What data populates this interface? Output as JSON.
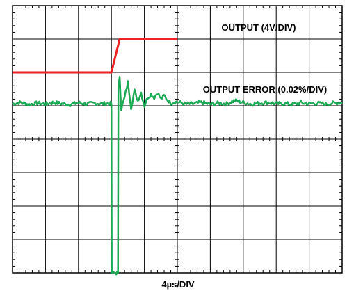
{
  "chart_data": {
    "type": "line",
    "title": "",
    "xlabel": "4µs/DIV",
    "ylabel": "",
    "grid": true,
    "x_divisions": 10,
    "y_divisions": 8,
    "x_units_per_div": "4µs",
    "series": [
      {
        "name": "OUTPUT (4V/DIV)",
        "color": "#ee2222",
        "points": [
          [
            0,
            6.0
          ],
          [
            6.0,
            6.0
          ],
          [
            6.5,
            7.0
          ],
          [
            6.7,
            7.0
          ],
          [
            10,
            7.0
          ]
        ]
      },
      {
        "name": "OUTPUT ERROR (0.02%/DIV)",
        "color": "#1aaa55",
        "points": [
          [
            0,
            5.06
          ],
          [
            0.5,
            5.1
          ],
          [
            1.0,
            5.04
          ],
          [
            1.5,
            5.08
          ],
          [
            2.0,
            5.05
          ],
          [
            2.5,
            5.1
          ],
          [
            3.0,
            5.06
          ],
          [
            3.5,
            5.04
          ],
          [
            4.0,
            5.09
          ],
          [
            4.5,
            5.05
          ],
          [
            5.0,
            5.08
          ],
          [
            5.5,
            5.06
          ],
          [
            5.9,
            5.08
          ],
          [
            6.0,
            5.06
          ],
          [
            6.02,
            0.0
          ],
          [
            6.3,
            0.0
          ],
          [
            6.4,
            0.0
          ],
          [
            6.42,
            5.5
          ],
          [
            6.5,
            5.9
          ],
          [
            6.6,
            4.9
          ],
          [
            6.8,
            5.25
          ],
          [
            7.0,
            5.7
          ],
          [
            7.2,
            4.95
          ],
          [
            7.4,
            5.45
          ],
          [
            7.6,
            5.15
          ],
          [
            7.8,
            5.4
          ],
          [
            8.0,
            5.0
          ],
          [
            8.2,
            5.25
          ],
          [
            8.4,
            5.35
          ],
          [
            8.6,
            5.25
          ],
          [
            8.8,
            5.4
          ],
          [
            9.0,
            5.2
          ],
          [
            9.2,
            5.3
          ],
          [
            9.4,
            5.18
          ],
          [
            9.6,
            5.08
          ],
          [
            9.8,
            5.12
          ],
          [
            10.0,
            5.12
          ],
          [
            10.5,
            5.05
          ],
          [
            11.0,
            5.06
          ],
          [
            11.5,
            5.1
          ],
          [
            12.0,
            5.04
          ],
          [
            12.5,
            5.08
          ],
          [
            13.0,
            5.06
          ],
          [
            13.5,
            5.16
          ],
          [
            14.0,
            5.1
          ],
          [
            14.5,
            5.05
          ],
          [
            15.0,
            5.08
          ],
          [
            15.5,
            5.1
          ],
          [
            16.0,
            5.06
          ],
          [
            16.5,
            5.07
          ],
          [
            17.0,
            5.04
          ],
          [
            17.5,
            5.09
          ],
          [
            18.0,
            5.06
          ],
          [
            18.5,
            5.08
          ],
          [
            19.0,
            5.05
          ],
          [
            19.5,
            5.08
          ],
          [
            20.0,
            5.1
          ]
        ]
      }
    ],
    "annotations": [
      {
        "text": "OUTPUT (4V/DIV)"
      },
      {
        "text": "OUTPUT ERROR (0.02%/DIV)"
      }
    ]
  }
}
